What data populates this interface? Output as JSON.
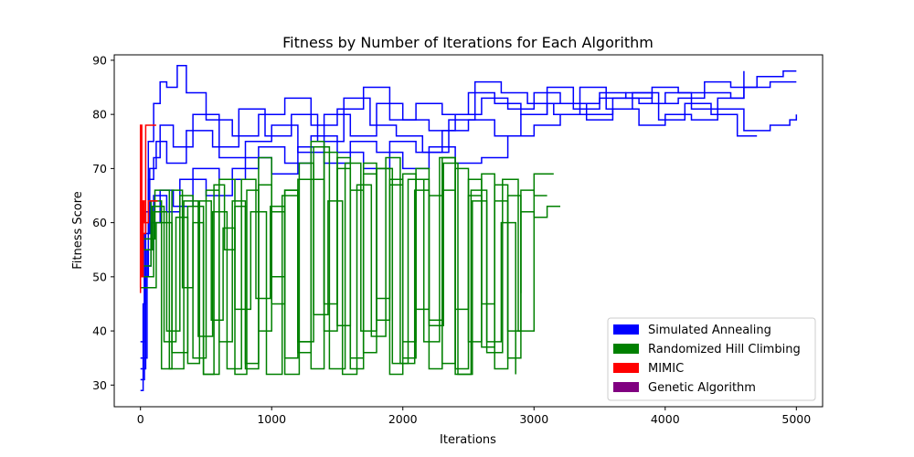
{
  "chart_data": {
    "type": "line",
    "title": "Fitness by Number of Iterations for Each Algorithm",
    "xlabel": "Iterations",
    "ylabel": "Fitness Score",
    "xlim": [
      -200,
      5200
    ],
    "ylim": [
      26,
      91
    ],
    "x_ticks": [
      0,
      1000,
      2000,
      3000,
      4000,
      5000
    ],
    "y_ticks": [
      30,
      40,
      50,
      60,
      70,
      80,
      90
    ],
    "grid": false,
    "legend_position": "lower-right",
    "series": [
      {
        "name": "Simulated Annealing",
        "color": "#0000ff",
        "runs": [
          {
            "x": [
              0,
              20,
              40,
              60,
              100,
              150,
              200,
              280,
              350,
              500,
              700,
              900,
              1100,
              1300,
              1500,
              1700,
              1900,
              2100,
              2300,
              2500,
              2700,
              2900,
              3100,
              3300,
              3500,
              3700,
              3900,
              4100,
              4300,
              4500,
              4700,
              4900,
              5000
            ],
            "y": [
              29,
              45,
              62,
              75,
              82,
              86,
              85,
              89,
              84,
              79,
              76,
              80,
              83,
              78,
              81,
              85,
              79,
              82,
              80,
              84,
              82,
              80,
              85,
              82,
              84,
              83,
              85,
              84,
              86,
              85,
              87,
              88,
              88
            ]
          },
          {
            "x": [
              0,
              30,
              60,
              100,
              150,
              250,
              400,
              600,
              800,
              1000,
              1200,
              1400,
              1600,
              1800,
              2000,
              2200,
              2400,
              2600,
              2800,
              3000,
              3200,
              3400,
              3600,
              3800,
              4000,
              4200,
              4400,
              4600,
              4800,
              5000
            ],
            "y": [
              31,
              50,
              68,
              72,
              78,
              74,
              80,
              72,
              75,
              78,
              73,
              80,
              76,
              82,
              79,
              77,
              80,
              83,
              81,
              84,
              82,
              80,
              83,
              82,
              84,
              81,
              83,
              85,
              86,
              86
            ]
          },
          {
            "x": [
              0,
              40,
              80,
              150,
              250,
              400,
              600,
              800,
              1000,
              1200,
              1400,
              1600,
              1800,
              2000,
              2200,
              2400,
              2600,
              2800,
              3000,
              3200,
              3400,
              3600,
              3800,
              4000,
              4200,
              4400,
              4600,
              4800,
              4950,
              5000
            ],
            "y": [
              33,
              52,
              60,
              66,
              63,
              70,
              68,
              72,
              69,
              74,
              71,
              75,
              73,
              70,
              74,
              71,
              72,
              76,
              78,
              80,
              79,
              81,
              78,
              80,
              79,
              81,
              77,
              78,
              79,
              80
            ]
          },
          {
            "x": [
              0,
              50,
              100,
              200,
              300,
              500,
              700,
              900,
              1100,
              1300,
              1500,
              1700,
              1900,
              2100,
              2300,
              2500,
              2700,
              2900,
              3100,
              3300,
              3500,
              3700,
              3900,
              4100,
              4300,
              4500,
              4600
            ],
            "y": [
              35,
              55,
              65,
              62,
              68,
              65,
              70,
              74,
              71,
              76,
              73,
              70,
              75,
              73,
              77,
              79,
              76,
              80,
              82,
              81,
              83,
              84,
              82,
              83,
              84,
              83,
              88
            ]
          },
          {
            "x": [
              0,
              30,
              70,
              120,
              200,
              350,
              550,
              750,
              950,
              1150,
              1350,
              1550,
              1750,
              1950,
              2150,
              2350,
              2550,
              2750,
              2950,
              3150,
              3350,
              3550,
              3750,
              3950,
              4150,
              4350,
              4550,
              4700
            ],
            "y": [
              38,
              58,
              70,
              75,
              71,
              77,
              74,
              81,
              76,
              80,
              75,
              83,
              78,
              76,
              73,
              79,
              86,
              84,
              82,
              80,
              85,
              81,
              84,
              79,
              82,
              80,
              76,
              76
            ]
          }
        ]
      },
      {
        "name": "Randomized Hill Climbing",
        "color": "#008000",
        "runs": [
          {
            "x": [
              0,
              100,
              200,
              300,
              400,
              500,
              600,
              700,
              800,
              900,
              1000,
              1100,
              1200,
              1300,
              1400,
              1500,
              1600,
              1700,
              1800,
              1900,
              2000,
              2100,
              2200,
              2300,
              2400,
              2500,
              2600,
              2700,
              2800,
              2900,
              3000,
              3100,
              3200
            ],
            "y": [
              50,
              62,
              40,
              65,
              35,
              66,
              38,
              64,
              33,
              67,
              45,
              66,
              36,
              68,
              40,
              70,
              35,
              69,
              42,
              67,
              38,
              68,
              33,
              66,
              44,
              65,
              37,
              64,
              40,
              62,
              61,
              63,
              63
            ]
          },
          {
            "x": [
              0,
              80,
              160,
              240,
              320,
              400,
              480,
              560,
              640,
              720,
              800,
              900,
              1000,
              1100,
              1200,
              1300,
              1400,
              1500,
              1600,
              1700,
              1800,
              1900,
              2000,
              2100,
              2200,
              2300,
              2400,
              2500,
              2600,
              2700,
              2800,
              2900,
              3000,
              3100
            ],
            "y": [
              52,
              64,
              33,
              66,
              48,
              60,
              32,
              67,
              55,
              63,
              34,
              72,
              50,
              66,
              38,
              75,
              45,
              72,
              33,
              71,
              46,
              68,
              35,
              70,
              42,
              72,
              33,
              68,
              45,
              67,
              35,
              66,
              65,
              65
            ]
          },
          {
            "x": [
              0,
              120,
              240,
              360,
              480,
              600,
              720,
              840,
              960,
              1080,
              1200,
              1320,
              1440,
              1560,
              1680,
              1800,
              1920,
              2040,
              2160,
              2280,
              2400,
              2520,
              2640,
              2760,
              2880,
              3000,
              3150
            ],
            "y": [
              48,
              60,
              36,
              63,
              32,
              68,
              44,
              62,
              32,
              65,
              38,
              74,
              33,
              71,
              40,
              70,
              34,
              68,
              38,
              72,
              32,
              66,
              36,
              68,
              40,
              69,
              69
            ]
          },
          {
            "x": [
              0,
              90,
              180,
              270,
              360,
              450,
              540,
              630,
              720,
              810,
              900,
              1000,
              1100,
              1200,
              1300,
              1400,
              1500,
              1600,
              1700,
              1800,
              1900,
              2000,
              2100,
              2200,
              2300,
              2400,
              2500,
              2600,
              2700,
              2800,
              2900
            ],
            "y": [
              55,
              63,
              38,
              61,
              34,
              64,
              42,
              59,
              32,
              66,
              40,
              62,
              35,
              68,
              33,
              73,
              41,
              66,
              36,
              70,
              32,
              69,
              44,
              65,
              34,
              70,
              38,
              69,
              33,
              65,
              47
            ]
          },
          {
            "x": [
              0,
              110,
              220,
              330,
              440,
              550,
              660,
              770,
              880,
              990,
              1100,
              1210,
              1320,
              1430,
              1540,
              1650,
              1760,
              1870,
              1980,
              2090,
              2200,
              2310,
              2420,
              2530,
              2640,
              2750,
              2860
            ],
            "y": [
              57,
              66,
              33,
              64,
              39,
              62,
              33,
              68,
              46,
              63,
              32,
              71,
              43,
              64,
              32,
              67,
              39,
              72,
              34,
              66,
              41,
              71,
              32,
              64,
              38,
              60,
              32
            ]
          }
        ]
      },
      {
        "name": "MIMIC",
        "color": "#ff0000",
        "runs": [
          {
            "x": [
              0,
              0,
              5,
              10,
              20,
              40,
              60,
              80,
              100,
              120
            ],
            "y": [
              47,
              78,
              78,
              50,
              58,
              78,
              78,
              78,
              78,
              78
            ]
          },
          {
            "x": [
              0,
              0,
              10,
              20,
              30,
              60,
              100,
              130
            ],
            "y": [
              48,
              64,
              55,
              64,
              60,
              64,
              64,
              64
            ]
          }
        ]
      },
      {
        "name": "Genetic Algorithm",
        "color": "#800080",
        "runs": []
      }
    ]
  }
}
